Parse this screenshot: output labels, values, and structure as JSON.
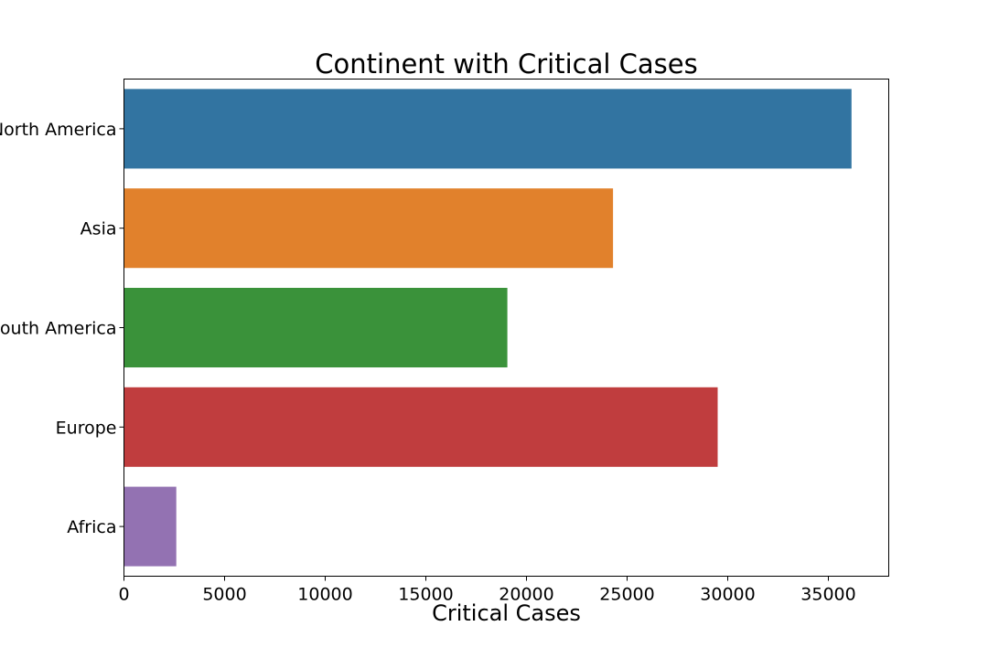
{
  "chart_data": {
    "type": "bar",
    "orientation": "horizontal",
    "title": "Continent with Critical Cases",
    "xlabel": "Critical Cases",
    "ylabel": "",
    "categories": [
      "North America",
      "Asia",
      "South America",
      "Europe",
      "Africa"
    ],
    "values": [
      36150,
      24300,
      19050,
      29500,
      2600
    ],
    "colors": [
      "#3274a1",
      "#e1812c",
      "#3a923a",
      "#c03d3e",
      "#9372b2"
    ],
    "xlim": [
      0,
      38000
    ],
    "xticks": [
      0,
      5000,
      10000,
      15000,
      20000,
      25000,
      30000,
      35000
    ],
    "grid": false,
    "legend": null
  }
}
